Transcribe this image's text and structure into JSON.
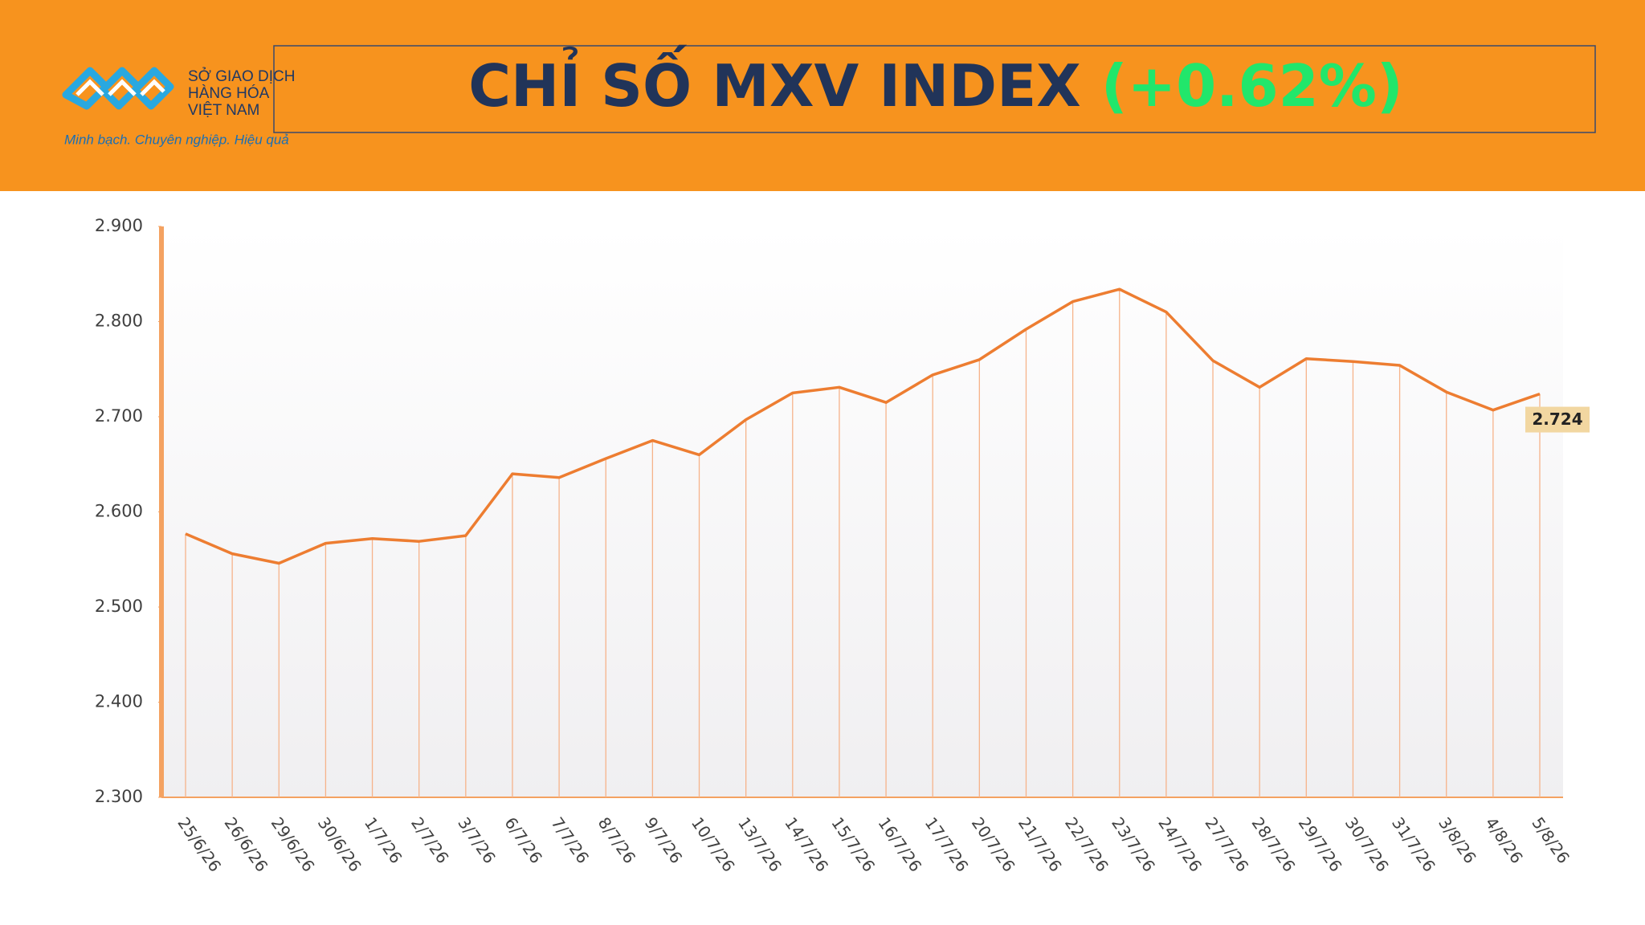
{
  "header": {
    "brand": [
      "SỞ GIAO DỊCH",
      "HÀNG HÓA",
      "VIỆT NAM"
    ],
    "slogan": "Minh bạch. Chuyên nghiệp. Hiệu quả",
    "title": "CHỈ SỐ MXV INDEX",
    "change": "(+0.62%)"
  },
  "chart_data": {
    "type": "line",
    "categories": [
      "25/6/26",
      "26/6/26",
      "29/6/26",
      "30/6/26",
      "1/7/26",
      "2/7/26",
      "3/7/26",
      "6/7/26",
      "7/7/26",
      "8/7/26",
      "9/7/26",
      "10/7/26",
      "13/7/26",
      "14/7/26",
      "15/7/26",
      "16/7/26",
      "17/7/26",
      "20/7/26",
      "21/7/26",
      "22/7/26",
      "23/7/26",
      "24/7/26",
      "27/7/26",
      "28/7/26",
      "29/7/26",
      "30/7/26",
      "31/7/26",
      "3/8/26",
      "4/8/26",
      "5/8/26"
    ],
    "series": [
      {
        "color": "#ed7d31",
        "values": [
          2577,
          2556,
          2546,
          2567,
          2572,
          2569,
          2575,
          2640,
          2636,
          2656,
          2675,
          2660,
          2697,
          2725,
          2731,
          2715,
          2744,
          2760,
          2792,
          2821,
          2834,
          2810,
          2759,
          2731,
          2761,
          2758,
          2754,
          2726,
          2707,
          2724
        ],
        "value_labels": [
          null,
          null,
          null,
          null,
          null,
          null,
          null,
          null,
          null,
          null,
          null,
          null,
          null,
          null,
          null,
          null,
          null,
          null,
          null,
          null,
          null,
          null,
          null,
          null,
          null,
          null,
          null,
          null,
          null,
          "2.724"
        ]
      }
    ],
    "ylim": [
      2300,
      2900
    ],
    "yticks": [
      {
        "value": 2300,
        "label": "2.300"
      },
      {
        "value": 2400,
        "label": "2.400"
      },
      {
        "value": 2500,
        "label": "2.500"
      },
      {
        "value": 2600,
        "label": "2.600"
      },
      {
        "value": 2700,
        "label": "2.700"
      },
      {
        "value": 2800,
        "label": "2.800"
      },
      {
        "value": 2900,
        "label": "2.900"
      }
    ],
    "grid": false
  }
}
